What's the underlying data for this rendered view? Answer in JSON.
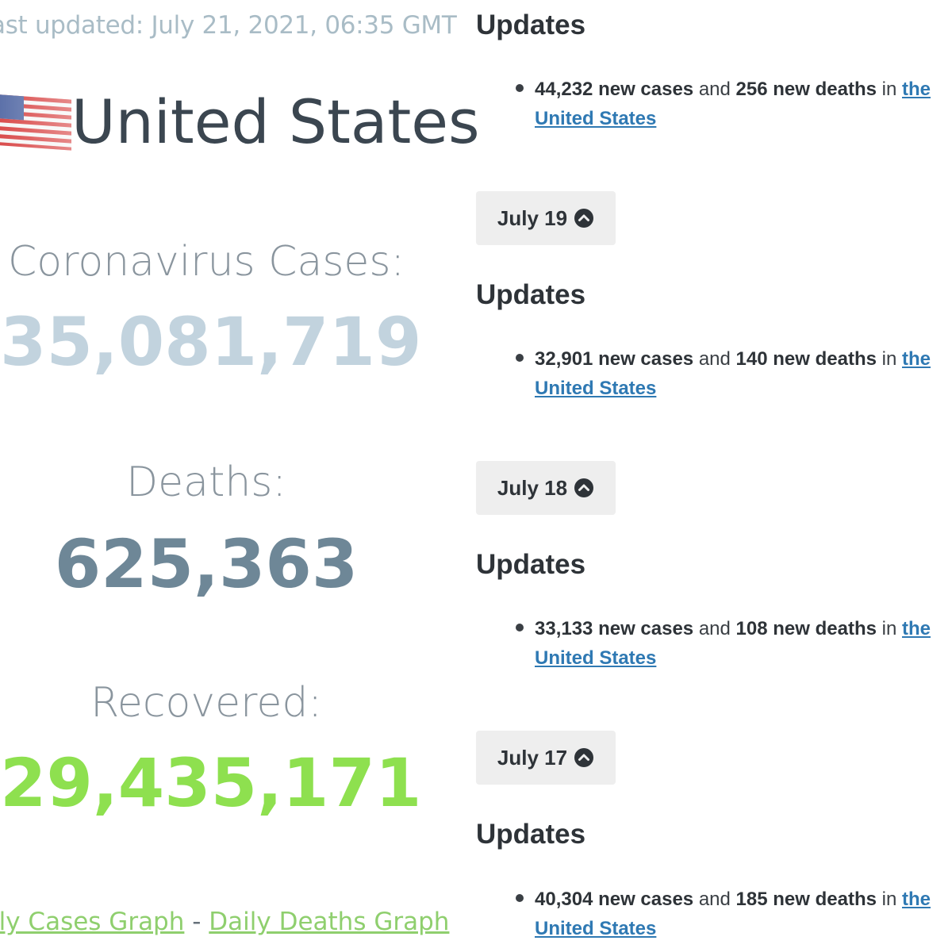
{
  "header": {
    "last_updated": "ast updated: July 21, 2021, 06:35 GMT"
  },
  "country": {
    "name": "United States",
    "flag_icon": "us-flag-icon"
  },
  "stats": {
    "cases_label": "Coronavirus Cases:",
    "cases_value": "35,081,719",
    "deaths_label": "Deaths:",
    "deaths_value": "625,363",
    "recovered_label": "Recovered:",
    "recovered_value": "29,435,171"
  },
  "links": {
    "daily_cases": "ily Cases Graph",
    "separator": " - ",
    "daily_deaths": "Daily Deaths Graph"
  },
  "colors": {
    "cases": "#c2d3de",
    "deaths": "#6e8797",
    "recovered": "#8ee04f",
    "link_blue": "#2f79b3",
    "link_green": "#8fcf6e"
  },
  "updates": [
    {
      "heading": "Updates",
      "cases": "44,232 new cases",
      "and": " and ",
      "deaths": "256 new deaths",
      "in": " in ",
      "link": "the United States"
    },
    {
      "date": "July 19",
      "heading": "Updates",
      "cases": "32,901 new cases",
      "and": " and ",
      "deaths": "140 new deaths",
      "in": " in ",
      "link": "the United States"
    },
    {
      "date": "July 18",
      "heading": "Updates",
      "cases": "33,133 new cases",
      "and": " and ",
      "deaths": "108 new deaths",
      "in": " in ",
      "link": "the United States"
    },
    {
      "date": "July 17",
      "heading": "Updates",
      "cases": "40,304 new cases",
      "and": " and ",
      "deaths": "185 new deaths",
      "in": " in ",
      "link": "the United States"
    }
  ]
}
